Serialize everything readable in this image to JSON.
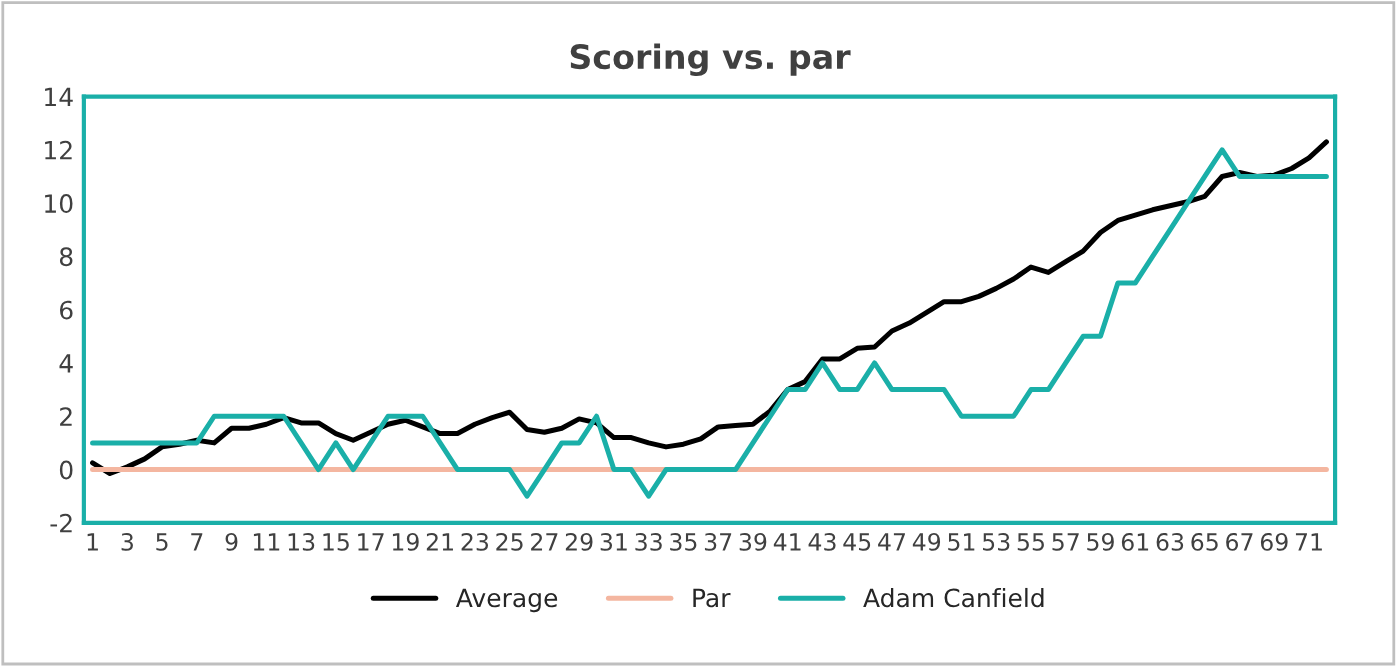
{
  "chart_data": {
    "type": "line",
    "title": "Scoring vs. par",
    "categories": [
      "1",
      null,
      "3",
      null,
      "5",
      null,
      "7",
      null,
      "9",
      null,
      "11",
      null,
      "13",
      null,
      "15",
      null,
      "17",
      null,
      "19",
      null,
      "21",
      null,
      "23",
      null,
      "25",
      null,
      "27",
      null,
      "29",
      null,
      "31",
      null,
      "33",
      null,
      "35",
      null,
      "37",
      null,
      "39",
      null,
      "41",
      null,
      "43",
      null,
      "45",
      null,
      "47",
      null,
      "49",
      null,
      "51",
      null,
      "53",
      null,
      "55",
      null,
      "57",
      null,
      "59",
      null,
      "61",
      null,
      "63",
      null,
      "65",
      null,
      "67",
      null,
      "69",
      null,
      "71",
      null
    ],
    "series": [
      {
        "name": "Average",
        "color": "#000000",
        "values": [
          0.25,
          -0.15,
          0.1,
          0.4,
          0.85,
          0.95,
          1.1,
          1.0,
          1.55,
          1.55,
          1.7,
          1.95,
          1.75,
          1.75,
          1.35,
          1.1,
          1.4,
          1.7,
          1.85,
          1.6,
          1.35,
          1.35,
          1.7,
          1.95,
          2.15,
          1.5,
          1.4,
          1.55,
          1.9,
          1.75,
          1.2,
          1.2,
          1.0,
          0.85,
          0.95,
          1.15,
          1.6,
          1.65,
          1.7,
          2.2,
          3.0,
          3.3,
          4.15,
          4.15,
          4.55,
          4.6,
          5.2,
          5.5,
          5.9,
          6.3,
          6.3,
          6.5,
          6.8,
          7.15,
          7.6,
          7.4,
          7.8,
          8.2,
          8.9,
          9.35,
          9.55,
          9.75,
          9.9,
          10.05,
          10.25,
          11.0,
          11.15,
          11.0,
          11.05,
          11.3,
          11.7,
          12.3
        ]
      },
      {
        "name": "Par",
        "color": "#f4b6a0",
        "values": [
          0,
          0,
          0,
          0,
          0,
          0,
          0,
          0,
          0,
          0,
          0,
          0,
          0,
          0,
          0,
          0,
          0,
          0,
          0,
          0,
          0,
          0,
          0,
          0,
          0,
          0,
          0,
          0,
          0,
          0,
          0,
          0,
          0,
          0,
          0,
          0,
          0,
          0,
          0,
          0,
          0,
          0,
          0,
          0,
          0,
          0,
          0,
          0,
          0,
          0,
          0,
          0,
          0,
          0,
          0,
          0,
          0,
          0,
          0,
          0,
          0,
          0,
          0,
          0,
          0,
          0,
          0,
          0,
          0,
          0,
          0,
          0
        ]
      },
      {
        "name": "Adam Canfield",
        "color": "#1aafa8",
        "values": [
          1,
          1,
          1,
          1,
          1,
          1,
          1,
          2,
          2,
          2,
          2,
          2,
          1,
          0,
          1,
          0,
          1,
          2,
          2,
          2,
          1,
          0,
          0,
          0,
          0,
          -1,
          0,
          1,
          1,
          2,
          0,
          0,
          -1,
          0,
          0,
          0,
          0,
          0,
          1,
          2,
          3,
          3,
          4,
          3,
          3,
          4,
          3,
          3,
          3,
          3,
          2,
          2,
          2,
          2,
          3,
          3,
          4,
          5,
          5,
          7,
          7,
          8,
          9,
          10,
          11,
          12,
          11,
          11,
          11,
          11,
          11,
          11
        ]
      }
    ],
    "ylim": [
      -2,
      14
    ],
    "yticks": [
      -2,
      0,
      2,
      4,
      6,
      8,
      10,
      12,
      14
    ],
    "grid": false,
    "legend": "bottom",
    "marker": "none",
    "line_style": "solid"
  }
}
